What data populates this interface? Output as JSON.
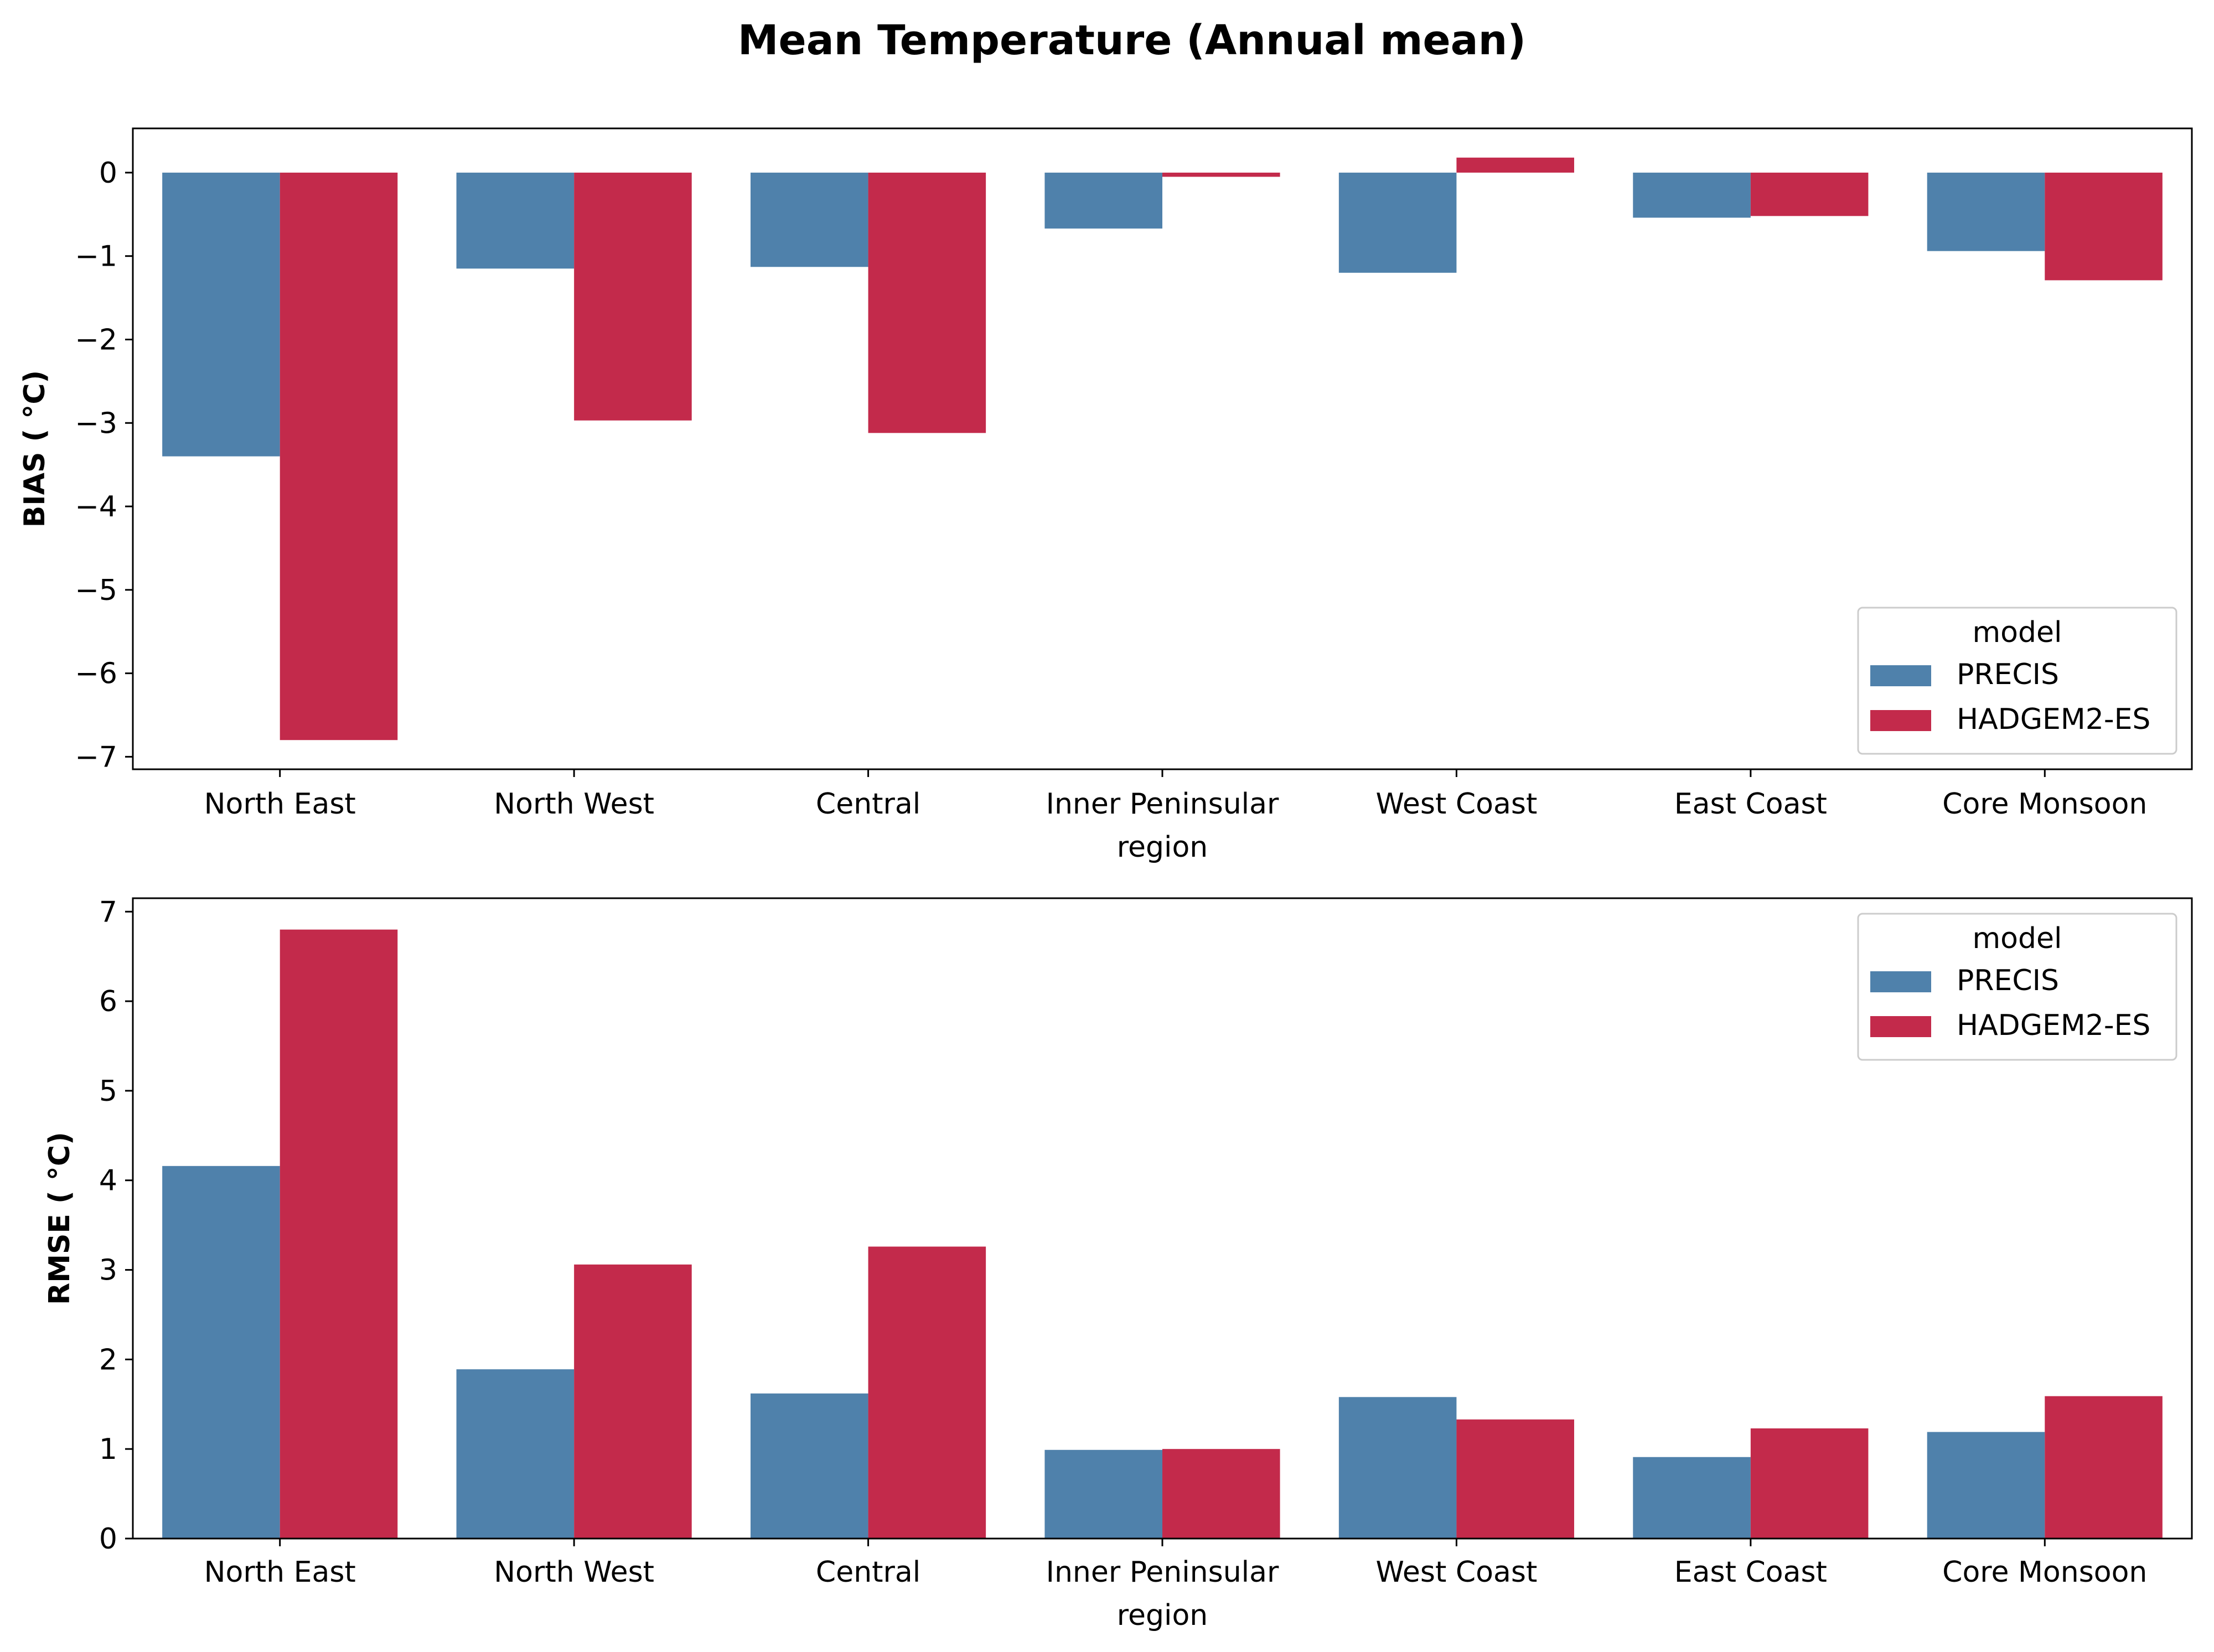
{
  "title": "Mean Temperature (Annual mean)",
  "colors": {
    "PRECIS": "#4f81ab",
    "HADGEM2-ES": "#c32a4b"
  },
  "chart_data": [
    {
      "type": "bar",
      "ylabel": "BIAS ($^\\circ$C)",
      "ylabel_display": "BIAS ( °C)",
      "xlabel": "region",
      "ylim": [
        -7.15,
        0.53
      ],
      "yticks": [
        0,
        -1,
        -2,
        -3,
        -4,
        -5,
        -6,
        -7
      ],
      "ytick_labels": [
        "0",
        "−1",
        "−2",
        "−3",
        "−4",
        "−5",
        "−6",
        "−7"
      ],
      "categories": [
        "North East",
        "North West",
        "Central",
        "Inner Peninsular",
        "West Coast",
        "East Coast",
        "Core Monsoon"
      ],
      "legend": {
        "title": "model",
        "placement": "lower right"
      },
      "series": [
        {
          "name": "PRECIS",
          "values": [
            -3.4,
            -1.15,
            -1.13,
            -0.67,
            -1.2,
            -0.54,
            -0.94
          ]
        },
        {
          "name": "HADGEM2-ES",
          "values": [
            -6.8,
            -2.97,
            -3.12,
            -0.05,
            0.18,
            -0.52,
            -1.29
          ]
        }
      ]
    },
    {
      "type": "bar",
      "ylabel": "RMSE ($^\\circ$C)",
      "ylabel_display": "RMSE ( °C)",
      "xlabel": "region",
      "ylim": [
        0,
        7.15
      ],
      "yticks": [
        0,
        1,
        2,
        3,
        4,
        5,
        6,
        7
      ],
      "ytick_labels": [
        "0",
        "1",
        "2",
        "3",
        "4",
        "5",
        "6",
        "7"
      ],
      "categories": [
        "North East",
        "North West",
        "Central",
        "Inner Peninsular",
        "West Coast",
        "East Coast",
        "Core Monsoon"
      ],
      "legend": {
        "title": "model",
        "placement": "upper right"
      },
      "series": [
        {
          "name": "PRECIS",
          "values": [
            4.16,
            1.89,
            1.62,
            0.99,
            1.58,
            0.91,
            1.19
          ]
        },
        {
          "name": "HADGEM2-ES",
          "values": [
            6.8,
            3.06,
            3.26,
            1.0,
            1.33,
            1.23,
            1.59
          ]
        }
      ]
    }
  ]
}
